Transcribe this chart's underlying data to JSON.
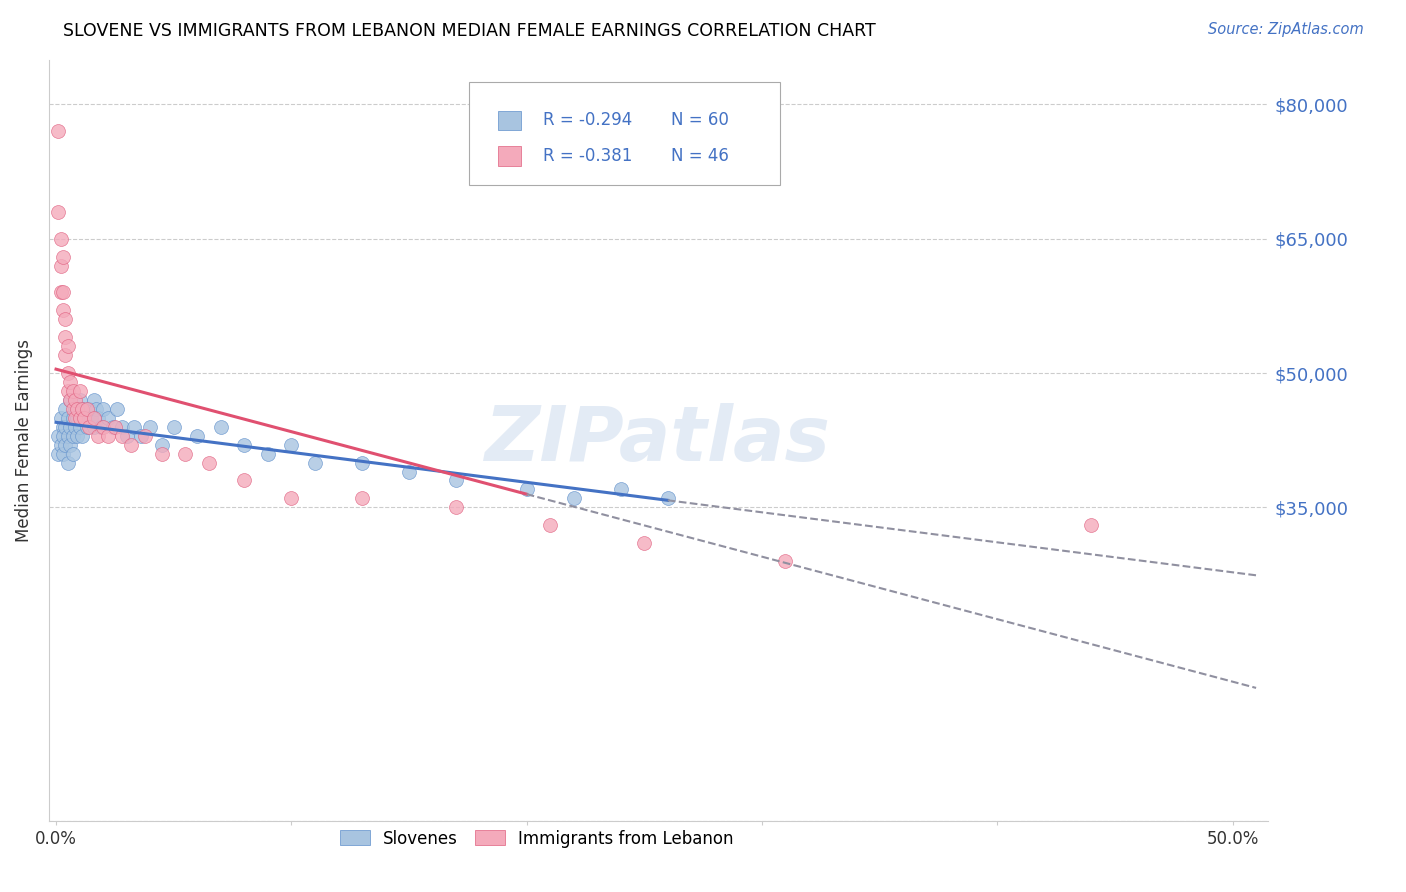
{
  "title": "SLOVENE VS IMMIGRANTS FROM LEBANON MEDIAN FEMALE EARNINGS CORRELATION CHART",
  "source": "Source: ZipAtlas.com",
  "ylabel": "Median Female Earnings",
  "yticks": [
    0,
    35000,
    50000,
    65000,
    80000
  ],
  "ytick_labels": [
    "",
    "$35,000",
    "$50,000",
    "$65,000",
    "$80,000"
  ],
  "xlim": [
    -0.003,
    0.515
  ],
  "ylim": [
    22000,
    85000
  ],
  "xtick_vals": [
    0.0,
    0.1,
    0.2,
    0.3,
    0.4,
    0.5
  ],
  "xtick_labels": [
    "0.0%",
    "",
    "",
    "",
    "",
    "50.0%"
  ],
  "blue_color": "#A8C4E0",
  "pink_color": "#F4AABB",
  "blue_edge_color": "#6090CC",
  "pink_edge_color": "#E06080",
  "blue_line_color": "#4472C4",
  "pink_line_color": "#E05070",
  "legend_r_blue": "R = -0.294",
  "legend_n_blue": "N = 60",
  "legend_r_pink": "R = -0.381",
  "legend_n_pink": "N = 46",
  "blue_label": "Slovenes",
  "pink_label": "Immigrants from Lebanon",
  "watermark": "ZIPatlas",
  "blue_x": [
    0.001,
    0.001,
    0.002,
    0.002,
    0.003,
    0.003,
    0.003,
    0.004,
    0.004,
    0.004,
    0.005,
    0.005,
    0.005,
    0.006,
    0.006,
    0.006,
    0.007,
    0.007,
    0.007,
    0.008,
    0.008,
    0.009,
    0.009,
    0.01,
    0.01,
    0.011,
    0.011,
    0.012,
    0.013,
    0.014,
    0.015,
    0.016,
    0.016,
    0.017,
    0.018,
    0.019,
    0.02,
    0.022,
    0.024,
    0.026,
    0.028,
    0.03,
    0.033,
    0.036,
    0.04,
    0.045,
    0.05,
    0.06,
    0.07,
    0.08,
    0.09,
    0.1,
    0.11,
    0.13,
    0.15,
    0.17,
    0.2,
    0.22,
    0.24,
    0.26
  ],
  "blue_y": [
    43000,
    41000,
    45000,
    42000,
    44000,
    43000,
    41000,
    46000,
    44000,
    42000,
    45000,
    43000,
    40000,
    47000,
    44000,
    42000,
    45000,
    43000,
    41000,
    46000,
    44000,
    45000,
    43000,
    47000,
    44000,
    46000,
    43000,
    45000,
    44000,
    46000,
    45000,
    47000,
    44000,
    46000,
    45000,
    44000,
    46000,
    45000,
    44000,
    46000,
    44000,
    43000,
    44000,
    43000,
    44000,
    42000,
    44000,
    43000,
    44000,
    42000,
    41000,
    42000,
    40000,
    40000,
    39000,
    38000,
    37000,
    36000,
    37000,
    36000
  ],
  "pink_x": [
    0.001,
    0.001,
    0.002,
    0.002,
    0.002,
    0.003,
    0.003,
    0.003,
    0.004,
    0.004,
    0.004,
    0.005,
    0.005,
    0.005,
    0.006,
    0.006,
    0.007,
    0.007,
    0.008,
    0.008,
    0.009,
    0.01,
    0.01,
    0.011,
    0.012,
    0.013,
    0.014,
    0.016,
    0.018,
    0.02,
    0.022,
    0.025,
    0.028,
    0.032,
    0.038,
    0.045,
    0.055,
    0.065,
    0.08,
    0.1,
    0.13,
    0.17,
    0.21,
    0.25,
    0.31,
    0.44
  ],
  "pink_y": [
    77000,
    68000,
    65000,
    62000,
    59000,
    63000,
    59000,
    57000,
    56000,
    54000,
    52000,
    53000,
    50000,
    48000,
    49000,
    47000,
    48000,
    46000,
    47000,
    45000,
    46000,
    48000,
    45000,
    46000,
    45000,
    46000,
    44000,
    45000,
    43000,
    44000,
    43000,
    44000,
    43000,
    42000,
    43000,
    41000,
    41000,
    40000,
    38000,
    36000,
    36000,
    35000,
    33000,
    31000,
    29000,
    33000
  ]
}
